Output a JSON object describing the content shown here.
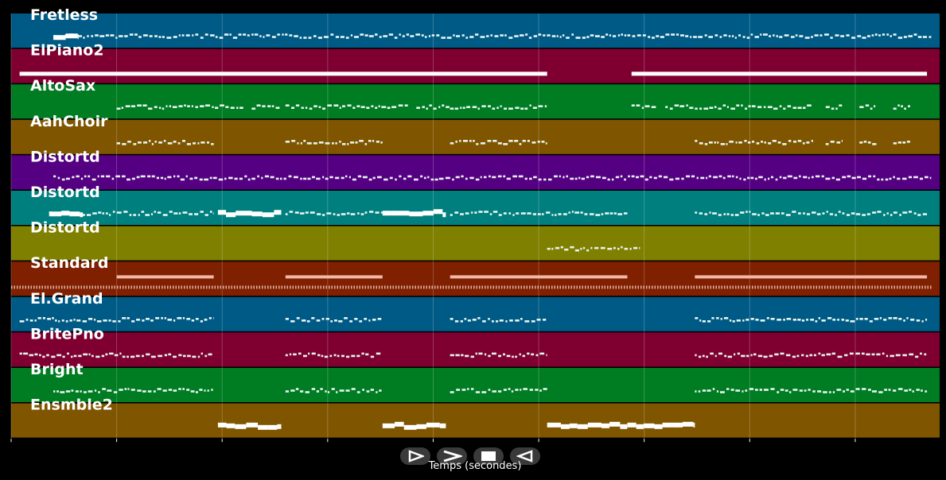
{
  "chart_data": {
    "type": "piano-roll",
    "xlabel": "Temps (secondes)",
    "xlim": [
      0,
      220
    ],
    "xticks": [
      0,
      25,
      50,
      75,
      100,
      125,
      150,
      175,
      200
    ],
    "grid": true,
    "tracks": [
      {
        "name": "Fretless",
        "color": "#005a86",
        "segments": [
          {
            "start": 10,
            "end": 218,
            "style": "dotted"
          },
          {
            "start": 10,
            "end": 16,
            "style": "thick"
          }
        ]
      },
      {
        "name": "ElPiano2",
        "color": "#7f0030",
        "segments": [
          {
            "start": 2,
            "end": 127,
            "style": "solid"
          },
          {
            "start": 147,
            "end": 217,
            "style": "solid"
          }
        ]
      },
      {
        "name": "AltoSax",
        "color": "#007c22",
        "segments": [
          {
            "start": 25,
            "end": 55,
            "style": "dotted"
          },
          {
            "start": 57,
            "end": 64,
            "style": "dotted"
          },
          {
            "start": 65,
            "end": 94,
            "style": "dotted"
          },
          {
            "start": 96,
            "end": 104,
            "style": "dotted"
          },
          {
            "start": 104,
            "end": 127,
            "style": "dotted"
          },
          {
            "start": 147,
            "end": 153,
            "style": "dotted"
          },
          {
            "start": 155,
            "end": 162,
            "style": "dotted"
          },
          {
            "start": 162,
            "end": 190,
            "style": "dotted"
          },
          {
            "start": 193,
            "end": 197,
            "style": "dotted"
          },
          {
            "start": 201,
            "end": 205,
            "style": "dotted"
          },
          {
            "start": 209,
            "end": 213,
            "style": "dotted"
          }
        ]
      },
      {
        "name": "AahChoir",
        "color": "#7f5500",
        "segments": [
          {
            "start": 25,
            "end": 48,
            "style": "dotted"
          },
          {
            "start": 65,
            "end": 88,
            "style": "dotted"
          },
          {
            "start": 104,
            "end": 127,
            "style": "dotted"
          },
          {
            "start": 162,
            "end": 190,
            "style": "dotted"
          },
          {
            "start": 193,
            "end": 197,
            "style": "dotted"
          },
          {
            "start": 201,
            "end": 205,
            "style": "dotted"
          },
          {
            "start": 209,
            "end": 213,
            "style": "dotted"
          }
        ]
      },
      {
        "name": "Distortd",
        "color": "#550082",
        "segments": [
          {
            "start": 10,
            "end": 218,
            "style": "dotted"
          }
        ]
      },
      {
        "name": "Distortd",
        "color": "#007f7f",
        "segments": [
          {
            "start": 9,
            "end": 48,
            "style": "dotted"
          },
          {
            "start": 9,
            "end": 17,
            "style": "thick"
          },
          {
            "start": 49,
            "end": 64,
            "style": "thick"
          },
          {
            "start": 65,
            "end": 88,
            "style": "dotted"
          },
          {
            "start": 88,
            "end": 103,
            "style": "thick"
          },
          {
            "start": 104,
            "end": 146,
            "style": "dotted"
          },
          {
            "start": 162,
            "end": 217,
            "style": "dotted"
          }
        ]
      },
      {
        "name": "Distortd",
        "color": "#7f7f00",
        "segments": [
          {
            "start": 127,
            "end": 149,
            "style": "dotted"
          }
        ]
      },
      {
        "name": "Standard",
        "color": "#7f2000",
        "segments": [
          {
            "start": 0,
            "end": 218,
            "style": "drums"
          },
          {
            "start": 25,
            "end": 48,
            "style": "bar"
          },
          {
            "start": 65,
            "end": 88,
            "style": "bar"
          },
          {
            "start": 104,
            "end": 146,
            "style": "bar"
          },
          {
            "start": 162,
            "end": 217,
            "style": "bar"
          }
        ]
      },
      {
        "name": "El.Grand",
        "color": "#005a86",
        "segments": [
          {
            "start": 2,
            "end": 48,
            "style": "dotted"
          },
          {
            "start": 65,
            "end": 88,
            "style": "dotted"
          },
          {
            "start": 104,
            "end": 127,
            "style": "dotted"
          },
          {
            "start": 162,
            "end": 217,
            "style": "dotted"
          }
        ]
      },
      {
        "name": "BritePno",
        "color": "#7f0030",
        "segments": [
          {
            "start": 2,
            "end": 48,
            "style": "dotted"
          },
          {
            "start": 65,
            "end": 88,
            "style": "dotted"
          },
          {
            "start": 104,
            "end": 127,
            "style": "dotted"
          },
          {
            "start": 162,
            "end": 217,
            "style": "dotted"
          }
        ]
      },
      {
        "name": "Bright",
        "color": "#007c22",
        "segments": [
          {
            "start": 10,
            "end": 48,
            "style": "dotted"
          },
          {
            "start": 65,
            "end": 88,
            "style": "dotted"
          },
          {
            "start": 104,
            "end": 127,
            "style": "dotted"
          },
          {
            "start": 162,
            "end": 217,
            "style": "dotted"
          }
        ]
      },
      {
        "name": "Ensmble2",
        "color": "#7f5500",
        "segments": [
          {
            "start": 49,
            "end": 64,
            "style": "thick"
          },
          {
            "start": 88,
            "end": 103,
            "style": "thick"
          },
          {
            "start": 127,
            "end": 146,
            "style": "thick"
          },
          {
            "start": 146,
            "end": 162,
            "style": "thick"
          }
        ]
      }
    ]
  },
  "controls": {
    "play_icon": "play-icon",
    "fast_forward_icon": "fast-forward-icon",
    "stop_icon": "stop-icon",
    "rewind_icon": "rewind-icon"
  }
}
